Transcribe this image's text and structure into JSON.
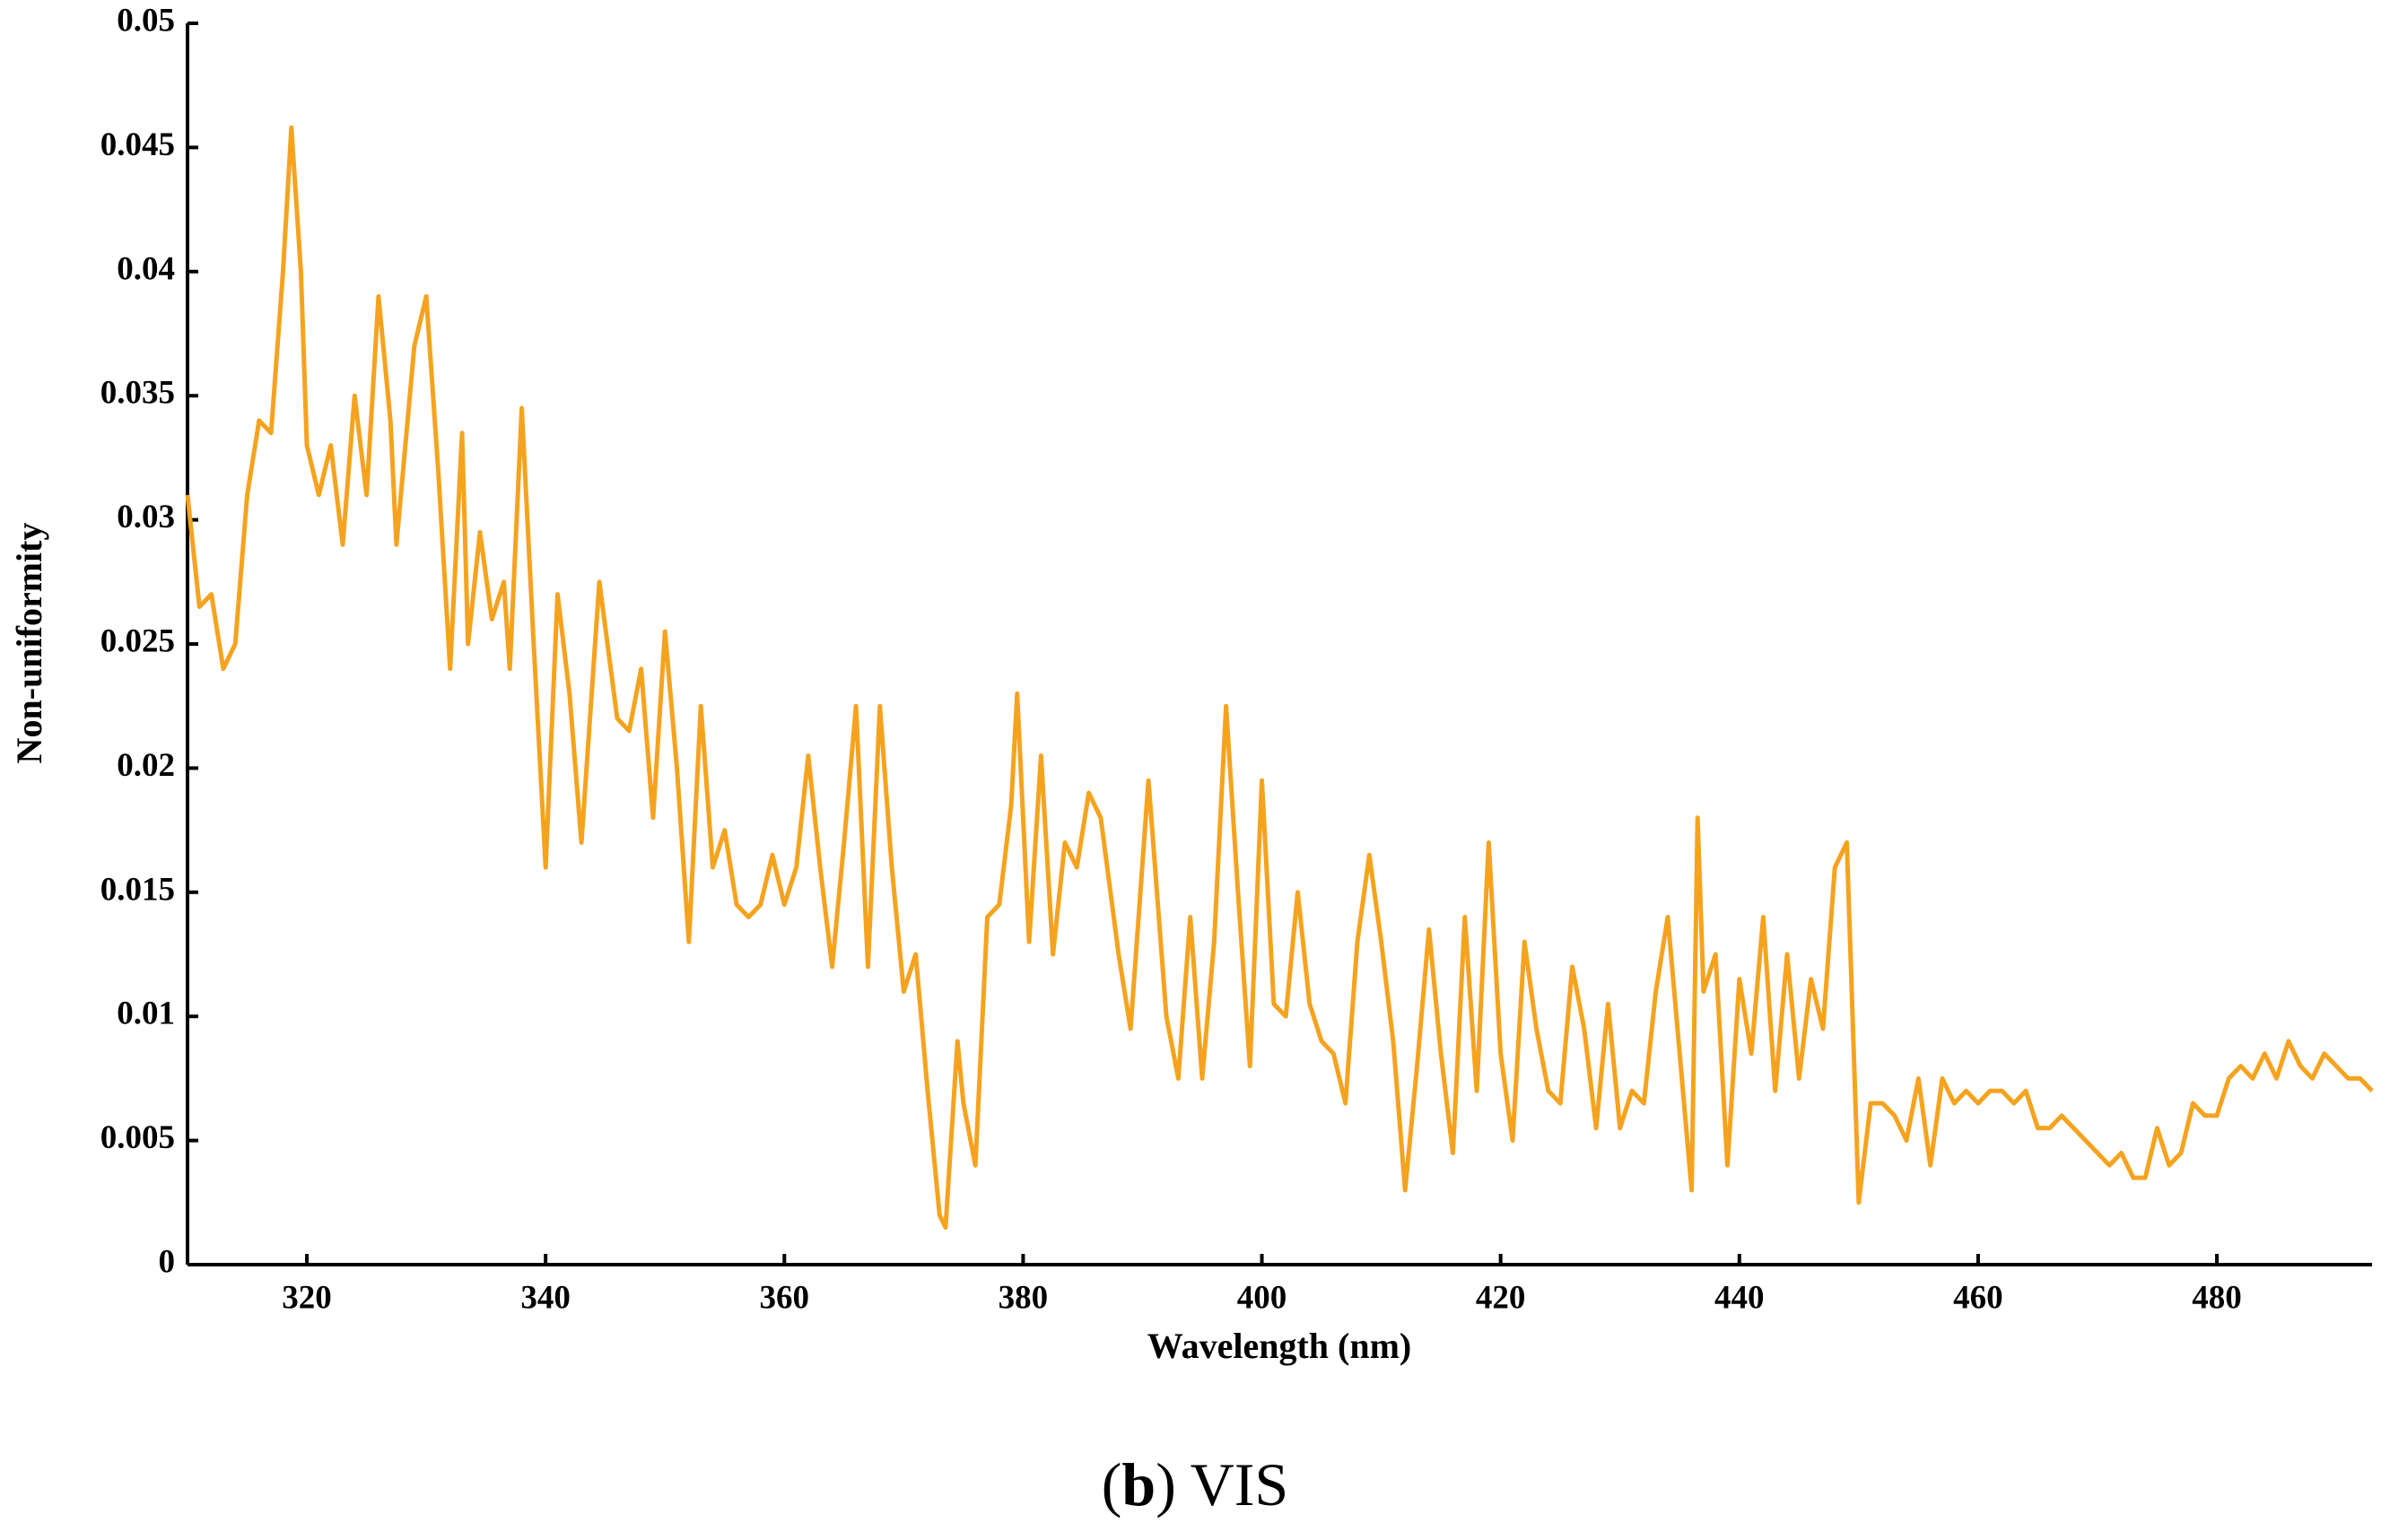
{
  "chart_data": {
    "type": "line",
    "color": "#f5a31f",
    "x_label": "Wavelength (nm)",
    "y_label": "Non-uniformity",
    "caption": {
      "open": "(",
      "letter": "b",
      "rest": ") VIS"
    },
    "xlim": [
      310,
      493
    ],
    "ylim": [
      0,
      0.05
    ],
    "xticks": [
      320,
      340,
      360,
      380,
      400,
      420,
      440,
      460,
      480
    ],
    "yticks": [
      0,
      0.005,
      0.01,
      0.015,
      0.02,
      0.025,
      0.03,
      0.035,
      0.04,
      0.045,
      0.05
    ],
    "x": [
      310,
      311,
      312,
      313,
      314,
      315,
      316,
      317,
      318,
      318.7,
      319.5,
      320,
      321,
      322,
      323,
      324,
      325,
      326,
      327,
      327.5,
      329,
      330,
      331,
      332,
      333,
      333.5,
      334.5,
      335.5,
      336.5,
      337,
      338,
      339,
      340,
      341,
      342,
      343,
      344.5,
      346,
      347,
      348,
      349,
      350,
      351,
      352,
      353,
      354,
      355,
      356,
      357,
      358,
      359,
      360,
      361,
      362,
      363,
      364,
      365,
      366,
      367,
      368,
      369,
      370,
      371,
      372,
      373,
      373.5,
      374.5,
      375,
      376,
      377,
      378,
      379,
      379.5,
      380.5,
      381.5,
      382.5,
      383.5,
      384.5,
      385.5,
      386.5,
      388,
      389,
      390.5,
      392,
      393,
      394,
      395,
      396,
      397,
      398,
      399,
      400,
      401,
      402,
      403,
      404,
      405,
      406,
      407,
      408,
      409,
      410,
      411,
      412,
      413,
      414,
      415,
      416,
      417,
      418,
      419,
      420,
      421,
      422,
      423,
      424,
      425,
      426,
      427,
      428,
      429,
      430,
      431,
      432,
      433,
      434,
      435,
      436,
      436.5,
      437,
      438,
      439,
      440,
      441,
      442,
      443,
      444,
      445,
      446,
      447,
      448,
      449,
      450,
      451,
      452,
      453,
      454,
      455,
      456,
      457,
      458,
      459,
      460,
      461,
      462,
      463,
      464,
      465,
      466,
      467,
      468,
      469,
      470,
      471,
      472,
      473,
      474,
      475,
      476,
      477,
      478,
      479,
      480,
      481,
      482,
      483,
      484,
      485,
      486,
      487,
      488,
      489,
      490,
      491,
      492,
      493
    ],
    "values": [
      0.031,
      0.0265,
      0.027,
      0.024,
      0.025,
      0.031,
      0.034,
      0.0335,
      0.04,
      0.0458,
      0.04,
      0.033,
      0.031,
      0.033,
      0.029,
      0.035,
      0.031,
      0.039,
      0.034,
      0.029,
      0.037,
      0.039,
      0.032,
      0.024,
      0.0335,
      0.025,
      0.0295,
      0.026,
      0.0275,
      0.024,
      0.0345,
      0.025,
      0.016,
      0.027,
      0.023,
      0.017,
      0.0275,
      0.022,
      0.0215,
      0.024,
      0.018,
      0.0255,
      0.02,
      0.013,
      0.0225,
      0.016,
      0.0175,
      0.0145,
      0.014,
      0.0145,
      0.0165,
      0.0145,
      0.016,
      0.0205,
      0.016,
      0.012,
      0.017,
      0.0225,
      0.012,
      0.0225,
      0.016,
      0.011,
      0.0125,
      0.007,
      0.002,
      0.0015,
      0.009,
      0.0065,
      0.004,
      0.014,
      0.0145,
      0.0185,
      0.023,
      0.013,
      0.0205,
      0.0125,
      0.017,
      0.016,
      0.019,
      0.018,
      0.0125,
      0.0095,
      0.0195,
      0.01,
      0.0075,
      0.014,
      0.0075,
      0.013,
      0.0225,
      0.015,
      0.008,
      0.0195,
      0.0105,
      0.01,
      0.015,
      0.0105,
      0.009,
      0.0085,
      0.0065,
      0.013,
      0.0165,
      0.013,
      0.009,
      0.003,
      0.008,
      0.0135,
      0.0085,
      0.0045,
      0.014,
      0.007,
      0.017,
      0.0085,
      0.005,
      0.013,
      0.0095,
      0.007,
      0.0065,
      0.012,
      0.0095,
      0.0055,
      0.0105,
      0.0055,
      0.007,
      0.0065,
      0.011,
      0.014,
      0.0085,
      0.003,
      0.018,
      0.011,
      0.0125,
      0.004,
      0.0115,
      0.0085,
      0.014,
      0.007,
      0.0125,
      0.0075,
      0.0115,
      0.0095,
      0.016,
      0.017,
      0.0025,
      0.0065,
      0.0065,
      0.006,
      0.005,
      0.0075,
      0.004,
      0.0075,
      0.0065,
      0.007,
      0.0065,
      0.007,
      0.007,
      0.0065,
      0.007,
      0.0055,
      0.0055,
      0.006,
      0.0055,
      0.005,
      0.0045,
      0.004,
      0.0045,
      0.0035,
      0.0035,
      0.0055,
      0.004,
      0.0045,
      0.0065,
      0.006,
      0.006,
      0.0075,
      0.008,
      0.0075,
      0.0085,
      0.0075,
      0.009,
      0.008,
      0.0075,
      0.0085,
      0.008,
      0.0075,
      0.0075,
      0.007
    ]
  }
}
